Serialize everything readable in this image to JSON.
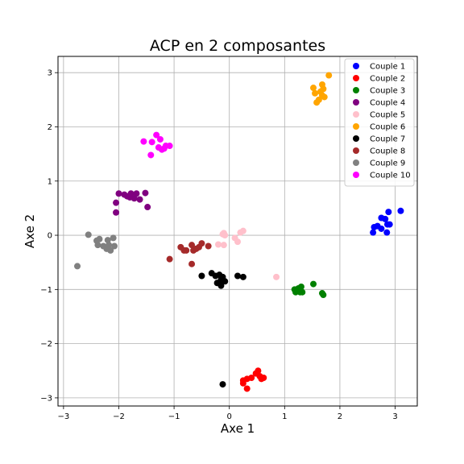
{
  "chart_data": {
    "type": "scatter",
    "title": "ACP en 2 composantes",
    "xlabel": "Axe 1",
    "ylabel": "Axe 2",
    "xlim": [
      -3.1,
      3.4
    ],
    "ylim": [
      -3.15,
      3.3
    ],
    "xticks": [
      -3,
      -2,
      -1,
      0,
      1,
      2,
      3
    ],
    "yticks": [
      -3,
      -2,
      -1,
      0,
      1,
      2,
      3
    ],
    "tick_labels": {
      "x": [
        "−3",
        "−2",
        "−1",
        "0",
        "1",
        "2",
        "3"
      ],
      "y": [
        "−3",
        "−2",
        "−1",
        "0",
        "1",
        "2",
        "3"
      ]
    },
    "grid": true,
    "legend_position": "top-right",
    "series": [
      {
        "name": "Couple 1",
        "color": "#0000ff",
        "points": [
          [
            2.6,
            0.05
          ],
          [
            2.62,
            0.15
          ],
          [
            2.68,
            0.17
          ],
          [
            2.75,
            0.32
          ],
          [
            2.75,
            0.12
          ],
          [
            2.82,
            0.3
          ],
          [
            2.85,
            0.05
          ],
          [
            2.86,
            0.2
          ],
          [
            2.88,
            0.43
          ],
          [
            2.9,
            0.2
          ],
          [
            3.1,
            0.45
          ]
        ]
      },
      {
        "name": "Couple 2",
        "color": "#ff0000",
        "points": [
          [
            0.25,
            -2.68
          ],
          [
            0.25,
            -2.73
          ],
          [
            0.32,
            -2.65
          ],
          [
            0.32,
            -2.83
          ],
          [
            0.4,
            -2.63
          ],
          [
            0.48,
            -2.55
          ],
          [
            0.52,
            -2.5
          ],
          [
            0.55,
            -2.6
          ],
          [
            0.58,
            -2.65
          ],
          [
            0.62,
            -2.63
          ]
        ]
      },
      {
        "name": "Couple 3",
        "color": "#008000",
        "points": [
          [
            1.18,
            -1.0
          ],
          [
            1.2,
            -1.05
          ],
          [
            1.23,
            -1.03
          ],
          [
            1.25,
            -0.98
          ],
          [
            1.28,
            -1.05
          ],
          [
            1.3,
            -0.95
          ],
          [
            1.32,
            -1.05
          ],
          [
            1.52,
            -0.9
          ],
          [
            1.68,
            -1.07
          ],
          [
            1.7,
            -1.1
          ]
        ]
      },
      {
        "name": "Couple 4",
        "color": "#800080",
        "points": [
          [
            -2.05,
            0.42
          ],
          [
            -2.05,
            0.6
          ],
          [
            -2.0,
            0.77
          ],
          [
            -1.9,
            0.75
          ],
          [
            -1.85,
            0.72
          ],
          [
            -1.8,
            0.7
          ],
          [
            -1.78,
            0.77
          ],
          [
            -1.72,
            0.68
          ],
          [
            -1.68,
            0.77
          ],
          [
            -1.62,
            0.66
          ],
          [
            -1.52,
            0.78
          ],
          [
            -1.48,
            0.52
          ]
        ]
      },
      {
        "name": "Couple 5",
        "color": "#ffc0cb",
        "points": [
          [
            -0.2,
            -0.17
          ],
          [
            -0.12,
            0.02
          ],
          [
            -0.1,
            -0.18
          ],
          [
            -0.1,
            0.04
          ],
          [
            -0.08,
            0.0
          ],
          [
            0.1,
            -0.05
          ],
          [
            0.15,
            -0.12
          ],
          [
            0.2,
            0.05
          ],
          [
            0.25,
            0.08
          ],
          [
            0.85,
            -0.77
          ]
        ]
      },
      {
        "name": "Couple 6",
        "color": "#ffa500",
        "points": [
          [
            1.52,
            2.72
          ],
          [
            1.55,
            2.62
          ],
          [
            1.58,
            2.45
          ],
          [
            1.62,
            2.5
          ],
          [
            1.65,
            2.65
          ],
          [
            1.68,
            2.58
          ],
          [
            1.68,
            2.78
          ],
          [
            1.7,
            2.7
          ],
          [
            1.72,
            2.55
          ],
          [
            1.8,
            2.95
          ]
        ]
      },
      {
        "name": "Couple 7",
        "color": "#000000",
        "points": [
          [
            -0.5,
            -0.75
          ],
          [
            -0.32,
            -0.7
          ],
          [
            -0.25,
            -0.75
          ],
          [
            -0.22,
            -0.88
          ],
          [
            -0.18,
            -0.73
          ],
          [
            -0.15,
            -0.82
          ],
          [
            -0.15,
            -0.93
          ],
          [
            -0.12,
            -0.77
          ],
          [
            -0.08,
            -0.85
          ],
          [
            0.15,
            -0.75
          ],
          [
            0.25,
            -0.77
          ],
          [
            -0.12,
            -2.75
          ]
        ]
      },
      {
        "name": "Couple 8",
        "color": "#a52a2a",
        "points": [
          [
            -1.08,
            -0.44
          ],
          [
            -0.88,
            -0.22
          ],
          [
            -0.82,
            -0.28
          ],
          [
            -0.78,
            -0.28
          ],
          [
            -0.68,
            -0.18
          ],
          [
            -0.68,
            -0.53
          ],
          [
            -0.65,
            -0.28
          ],
          [
            -0.6,
            -0.25
          ],
          [
            -0.55,
            -0.22
          ],
          [
            -0.5,
            -0.15
          ],
          [
            -0.38,
            -0.2
          ]
        ]
      },
      {
        "name": "Couple 9",
        "color": "#808080",
        "points": [
          [
            -2.75,
            -0.57
          ],
          [
            -2.55,
            0.01
          ],
          [
            -2.4,
            -0.1
          ],
          [
            -2.38,
            -0.18
          ],
          [
            -2.35,
            -0.07
          ],
          [
            -2.28,
            -0.2
          ],
          [
            -2.22,
            -0.25
          ],
          [
            -2.2,
            -0.09
          ],
          [
            -2.18,
            -0.18
          ],
          [
            -2.15,
            -0.28
          ],
          [
            -2.1,
            -0.05
          ],
          [
            -2.08,
            -0.2
          ]
        ]
      },
      {
        "name": "Couple 10",
        "color": "#ff00ff",
        "points": [
          [
            -1.55,
            1.73
          ],
          [
            -1.42,
            1.48
          ],
          [
            -1.4,
            1.72
          ],
          [
            -1.32,
            1.85
          ],
          [
            -1.28,
            1.62
          ],
          [
            -1.25,
            1.77
          ],
          [
            -1.22,
            1.58
          ],
          [
            -1.18,
            1.6
          ],
          [
            -1.15,
            1.65
          ],
          [
            -1.08,
            1.65
          ]
        ]
      }
    ]
  }
}
